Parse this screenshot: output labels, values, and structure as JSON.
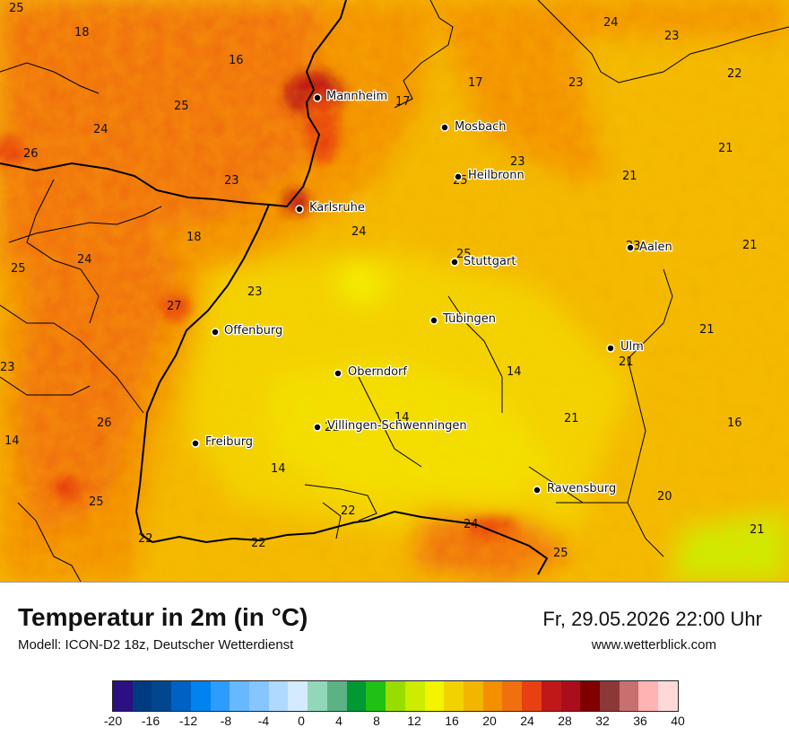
{
  "title": "Temperatur in 2m (in °C)",
  "subtitle": "Modell: ICON-D2 18z, Deutscher Wetterdienst",
  "datetime": "Fr, 29.05.2026 22:00 Uhr",
  "website": "www.wetterblick.com",
  "cities": [
    {
      "name": "Mannheim"
    },
    {
      "name": "Mosbach"
    },
    {
      "name": "Heilbronn"
    },
    {
      "name": "Karlsruhe"
    },
    {
      "name": "Stuttgart"
    },
    {
      "name": "Aalen"
    },
    {
      "name": "Tübingen"
    },
    {
      "name": "Offenburg"
    },
    {
      "name": "Ulm"
    },
    {
      "name": "Oberndorf"
    },
    {
      "name": "Villingen-Schwenningen"
    },
    {
      "name": "Freiburg"
    },
    {
      "name": "Ravensburg"
    }
  ],
  "values": [
    "25",
    "18",
    "16",
    "24",
    "23",
    "22",
    "25",
    "24",
    "26",
    "17",
    "17",
    "23",
    "21",
    "23",
    "25",
    "21",
    "23",
    "24",
    "18",
    "24",
    "25",
    "21",
    "25",
    "23",
    "23",
    "27",
    "23",
    "21",
    "21",
    "14",
    "14",
    "21",
    "26",
    "16",
    "21",
    "14",
    "14",
    "20",
    "25",
    "22",
    "24",
    "25",
    "21",
    "22",
    "22"
  ],
  "legend": {
    "colors": [
      "#2c0f80",
      "#003a80",
      "#00478f",
      "#0061c4",
      "#0083ee",
      "#2c9dff",
      "#66b8ff",
      "#86c6ff",
      "#b0d9ff",
      "#d4eaff",
      "#92d8b8",
      "#5cb284",
      "#009933",
      "#20c014",
      "#99dd00",
      "#ccec00",
      "#f2f400",
      "#f2d200",
      "#f2b600",
      "#f29000",
      "#f07010",
      "#e84010",
      "#c01818",
      "#aa0e1c",
      "#800000",
      "#8c3838",
      "#c87070",
      "#ffb4b4",
      "#ffd8d8"
    ],
    "ticks": [
      "-20",
      "-16",
      "-12",
      "-8",
      "-4",
      "0",
      "4",
      "8",
      "12",
      "16",
      "20",
      "24",
      "28",
      "32",
      "36",
      "40"
    ]
  }
}
